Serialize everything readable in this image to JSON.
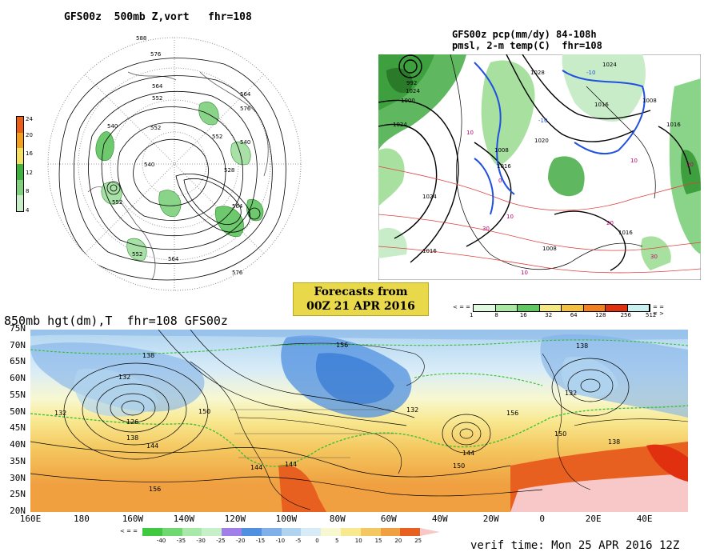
{
  "panel_500mb": {
    "title": "GFS00z  500mb Z,vort   fhr=108",
    "contours": [
      "588",
      "576",
      "564",
      "552",
      "540",
      "552",
      "564",
      "576",
      "552",
      "540",
      "528",
      "552",
      "564",
      "576",
      "552",
      "564",
      "540"
    ],
    "colorbar": {
      "labels": [
        "24",
        "20",
        "16",
        "12",
        "8",
        "4"
      ],
      "colors": [
        "#e8601a",
        "#f2a020",
        "#f4e060",
        "#40b040",
        "#80d080",
        "#c8ecc8"
      ]
    }
  },
  "panel_precip": {
    "title_line1": "GFS00z pcp(mm/dy) 84-108h",
    "title_line2": "pmsl, 2-m temp(C)  fhr=108",
    "isobars": [
      "1024",
      "1024",
      "1008",
      "1016",
      "1000",
      "992",
      "1016",
      "1024",
      "1016",
      "1008",
      "1016",
      "1020",
      "1008",
      "1016",
      "1028",
      "1024"
    ],
    "temps": [
      "10",
      "10",
      "0",
      "-10",
      "-10",
      "20",
      "30",
      "10",
      "10",
      "20",
      "30"
    ],
    "colorbar": {
      "labels": [
        "1",
        "8",
        "16",
        "32",
        "64",
        "128",
        "256",
        "512"
      ],
      "colors": [
        "#e0f8e0",
        "#a8e8a0",
        "#60c860",
        "#f4e880",
        "#f4c040",
        "#f08020",
        "#e03010",
        "#c8f0f0"
      ]
    }
  },
  "forecast_box": {
    "line1": "Forecasts from",
    "line2": "00Z 21 APR 2016"
  },
  "panel_850mb": {
    "title": "850mb hgt(dm),T  fhr=108 GFS00z",
    "lat_labels": [
      "75N",
      "70N",
      "65N",
      "60N",
      "55N",
      "50N",
      "45N",
      "40N",
      "35N",
      "30N",
      "25N",
      "20N"
    ],
    "lon_labels": [
      "160E",
      "180",
      "160W",
      "140W",
      "120W",
      "100W",
      "80W",
      "60W",
      "40W",
      "20W",
      "0",
      "20E",
      "40E"
    ],
    "height_labels": [
      "138",
      "132",
      "132",
      "126",
      "138",
      "144",
      "150",
      "156",
      "144",
      "144",
      "132",
      "156",
      "144",
      "150",
      "138",
      "132",
      "150",
      "138",
      "156"
    ],
    "colorbar": {
      "labels": [
        "-40",
        "-35",
        "-30",
        "-25",
        "-20",
        "-15",
        "-10",
        "-5",
        "0",
        "5",
        "10",
        "15",
        "20",
        "25"
      ],
      "colors": [
        "#40c840",
        "#70d870",
        "#a8e8a8",
        "#c8f0c8",
        "#a080e8",
        "#5090e0",
        "#80b0e8",
        "#b0d4f0",
        "#d8ecf8",
        "#f8f8d0",
        "#f8e890",
        "#f4c860",
        "#f0a040",
        "#e86020",
        "#f8c8c8"
      ]
    },
    "verif_time": "verif time: Mon 25 APR 2016 12Z"
  }
}
